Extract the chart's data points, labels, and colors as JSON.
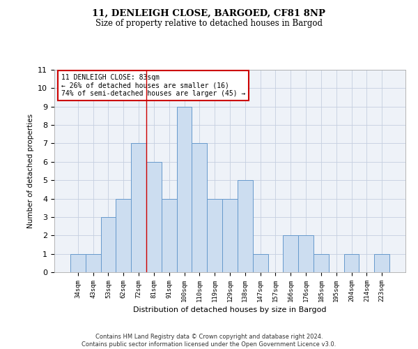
{
  "title1": "11, DENLEIGH CLOSE, BARGOED, CF81 8NP",
  "title2": "Size of property relative to detached houses in Bargod",
  "xlabel": "Distribution of detached houses by size in Bargod",
  "ylabel": "Number of detached properties",
  "categories": [
    "34sqm",
    "43sqm",
    "53sqm",
    "62sqm",
    "72sqm",
    "81sqm",
    "91sqm",
    "100sqm",
    "110sqm",
    "119sqm",
    "129sqm",
    "138sqm",
    "147sqm",
    "157sqm",
    "166sqm",
    "176sqm",
    "185sqm",
    "195sqm",
    "204sqm",
    "214sqm",
    "223sqm"
  ],
  "values": [
    1,
    1,
    3,
    4,
    7,
    6,
    4,
    9,
    7,
    4,
    4,
    5,
    1,
    0,
    2,
    2,
    1,
    0,
    1,
    0,
    1
  ],
  "bar_color": "#ccddf0",
  "bar_edge_color": "#6699cc",
  "property_line_index": 5.0,
  "annotation_line1": "11 DENLEIGH CLOSE: 83sqm",
  "annotation_line2": "← 26% of detached houses are smaller (16)",
  "annotation_line3": "74% of semi-detached houses are larger (45) →",
  "annotation_box_color": "#ffffff",
  "annotation_box_edge_color": "#cc0000",
  "grid_color": "#c5cfe0",
  "background_color": "#eef2f8",
  "ylim": [
    0,
    11
  ],
  "yticks": [
    0,
    1,
    2,
    3,
    4,
    5,
    6,
    7,
    8,
    9,
    10,
    11
  ],
  "footer_line1": "Contains HM Land Registry data © Crown copyright and database right 2024.",
  "footer_line2": "Contains public sector information licensed under the Open Government Licence v3.0."
}
